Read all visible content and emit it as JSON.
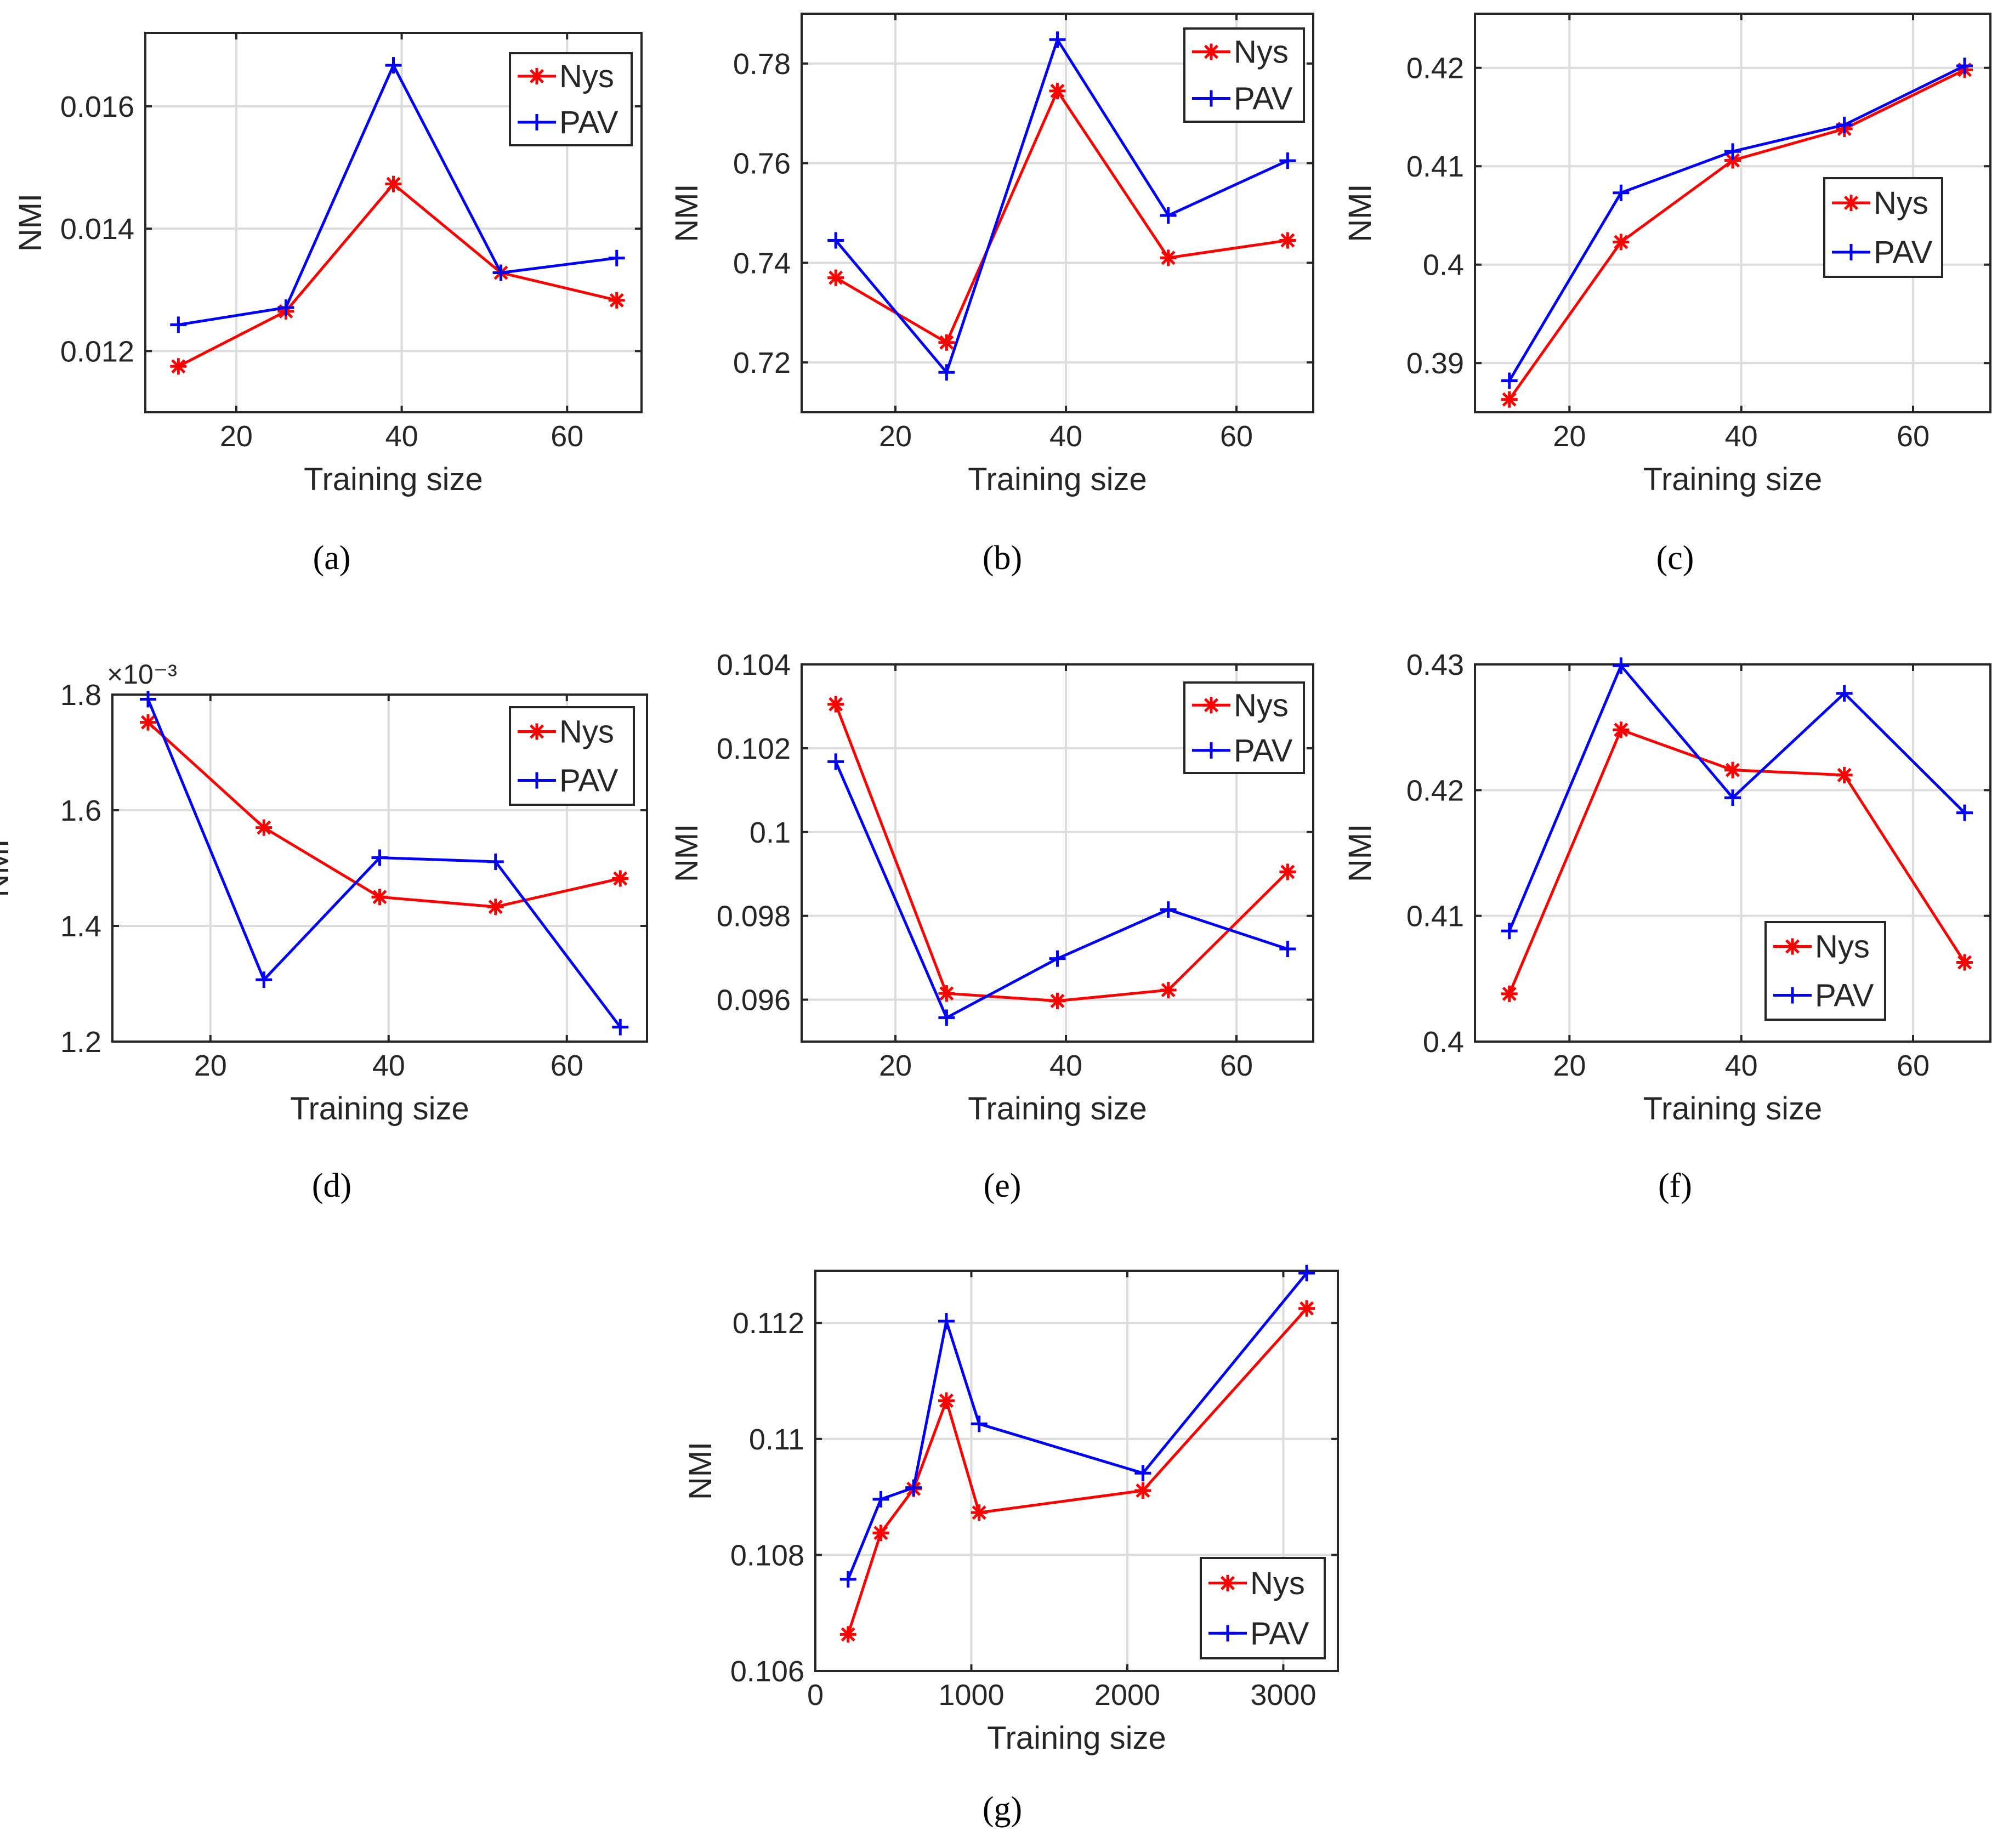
{
  "figure": {
    "series_styles": {
      "Nys": {
        "color": "#ff0000",
        "marker": "asterisk"
      },
      "PAV": {
        "color": "#0000ff",
        "marker": "plus"
      }
    },
    "grid_color": "#dcdcdc",
    "axis_color": "#262626"
  },
  "chart_data": [
    {
      "id": "a",
      "caption": "(a)",
      "type": "line",
      "xlabel": "Training size",
      "ylabel": "NMI",
      "xlim": [
        9,
        69
      ],
      "ylim": [
        0.011,
        0.0172
      ],
      "xticks": [
        20,
        40,
        60
      ],
      "xtick_labels": [
        "20",
        "40",
        "60"
      ],
      "yticks": [
        0.012,
        0.014,
        0.016
      ],
      "ytick_labels": [
        "0.012",
        "0.014",
        "0.016"
      ],
      "exponent_label": "",
      "legend_position": "top-right",
      "series": [
        {
          "name": "Nys",
          "x": [
            13,
            26,
            39,
            52,
            66
          ],
          "y": [
            0.01175,
            0.01265,
            0.01473,
            0.01328,
            0.01283
          ]
        },
        {
          "name": "PAV",
          "x": [
            13,
            26,
            39,
            52,
            66
          ],
          "y": [
            0.01243,
            0.01271,
            0.01667,
            0.01328,
            0.01352
          ]
        }
      ]
    },
    {
      "id": "b",
      "caption": "(b)",
      "type": "line",
      "xlabel": "Training size",
      "ylabel": "NMI",
      "xlim": [
        9,
        69
      ],
      "ylim": [
        0.71,
        0.79
      ],
      "xticks": [
        20,
        40,
        60
      ],
      "xtick_labels": [
        "20",
        "40",
        "60"
      ],
      "yticks": [
        0.72,
        0.74,
        0.76,
        0.78
      ],
      "ytick_labels": [
        "0.72",
        "0.74",
        "0.76",
        "0.78"
      ],
      "exponent_label": "",
      "legend_position": "top-right",
      "series": [
        {
          "name": "Nys",
          "x": [
            13,
            26,
            39,
            52,
            66
          ],
          "y": [
            0.737,
            0.724,
            0.7745,
            0.741,
            0.7445
          ]
        },
        {
          "name": "PAV",
          "x": [
            13,
            26,
            39,
            52,
            66
          ],
          "y": [
            0.7445,
            0.718,
            0.7848,
            0.7495,
            0.7605
          ]
        }
      ]
    },
    {
      "id": "c",
      "caption": "(c)",
      "type": "line",
      "xlabel": "Training size",
      "ylabel": "NMI",
      "xlim": [
        9,
        69
      ],
      "ylim": [
        0.385,
        0.4255
      ],
      "xticks": [
        20,
        40,
        60
      ],
      "xtick_labels": [
        "20",
        "40",
        "60"
      ],
      "yticks": [
        0.39,
        0.4,
        0.41,
        0.42
      ],
      "ytick_labels": [
        "0.39",
        "0.4",
        "0.41",
        "0.42"
      ],
      "exponent_label": "",
      "legend_position": "middle-right",
      "series": [
        {
          "name": "Nys",
          "x": [
            13,
            26,
            39,
            52,
            66
          ],
          "y": [
            0.3863,
            0.4023,
            0.4106,
            0.4138,
            0.4198
          ]
        },
        {
          "name": "PAV",
          "x": [
            13,
            26,
            39,
            52,
            66
          ],
          "y": [
            0.3882,
            0.4073,
            0.4115,
            0.4142,
            0.4202
          ]
        }
      ]
    },
    {
      "id": "d",
      "caption": "(d)",
      "type": "line",
      "xlabel": "Training size",
      "ylabel": "NMI",
      "xlim": [
        9,
        69
      ],
      "ylim": [
        1.2,
        1.8
      ],
      "xticks": [
        20,
        40,
        60
      ],
      "xtick_labels": [
        "20",
        "40",
        "60"
      ],
      "yticks": [
        1.2,
        1.4,
        1.6,
        1.8
      ],
      "ytick_labels": [
        "1.2",
        "1.4",
        "1.6",
        "1.8"
      ],
      "exponent_label": "×10⁻³",
      "legend_position": "top-right",
      "series": [
        {
          "name": "Nys",
          "x": [
            13,
            26,
            39,
            52,
            66
          ],
          "y": [
            1.752,
            1.57,
            1.45,
            1.433,
            1.482
          ]
        },
        {
          "name": "PAV",
          "x": [
            13,
            26,
            39,
            52,
            66
          ],
          "y": [
            1.792,
            1.307,
            1.518,
            1.511,
            1.225
          ]
        }
      ]
    },
    {
      "id": "e",
      "caption": "(e)",
      "type": "line",
      "xlabel": "Training size",
      "ylabel": "NMI",
      "xlim": [
        9,
        69
      ],
      "ylim": [
        0.095,
        0.104
      ],
      "xticks": [
        20,
        40,
        60
      ],
      "xtick_labels": [
        "20",
        "40",
        "60"
      ],
      "yticks": [
        0.096,
        0.098,
        0.1,
        0.102,
        0.104
      ],
      "ytick_labels": [
        "0.096",
        "0.098",
        "0.1",
        "0.102",
        "0.104"
      ],
      "exponent_label": "",
      "legend_position": "top-right",
      "series": [
        {
          "name": "Nys",
          "x": [
            13,
            26,
            39,
            52,
            66
          ],
          "y": [
            0.10305,
            0.09615,
            0.09597,
            0.09623,
            0.09905
          ]
        },
        {
          "name": "PAV",
          "x": [
            13,
            26,
            39,
            52,
            66
          ],
          "y": [
            0.10168,
            0.09557,
            0.09698,
            0.09815,
            0.09721
          ]
        }
      ]
    },
    {
      "id": "f",
      "caption": "(f)",
      "type": "line",
      "xlabel": "Training size",
      "ylabel": "NMI",
      "xlim": [
        9,
        69
      ],
      "ylim": [
        0.4,
        0.43
      ],
      "xticks": [
        20,
        40,
        60
      ],
      "xtick_labels": [
        "20",
        "40",
        "60"
      ],
      "yticks": [
        0.4,
        0.41,
        0.42,
        0.43
      ],
      "ytick_labels": [
        "0.4",
        "0.41",
        "0.42",
        "0.43"
      ],
      "exponent_label": "",
      "legend_position": "bottom-right",
      "series": [
        {
          "name": "Nys",
          "x": [
            13,
            26,
            39,
            52,
            66
          ],
          "y": [
            0.4038,
            0.4248,
            0.4216,
            0.4212,
            0.4063
          ]
        },
        {
          "name": "PAV",
          "x": [
            13,
            26,
            39,
            52,
            66
          ],
          "y": [
            0.4088,
            0.4299,
            0.4194,
            0.4277,
            0.4182
          ]
        }
      ]
    },
    {
      "id": "g",
      "caption": "(g)",
      "type": "line",
      "xlabel": "Training size",
      "ylabel": "NMI",
      "xlim": [
        0,
        3350
      ],
      "ylim": [
        0.106,
        0.1129
      ],
      "xticks": [
        0,
        1000,
        2000,
        3000
      ],
      "xtick_labels": [
        "0",
        "1000",
        "2000",
        "3000"
      ],
      "yticks": [
        0.106,
        0.108,
        0.11,
        0.112
      ],
      "ytick_labels": [
        "0.106",
        "0.108",
        "0.11",
        "0.112"
      ],
      "exponent_label": "",
      "legend_position": "bottom-right",
      "series": [
        {
          "name": "Nys",
          "x": [
            210,
            420,
            630,
            840,
            1050,
            2100,
            3150
          ],
          "y": [
            0.10663,
            0.10838,
            0.10914,
            0.11066,
            0.10873,
            0.10911,
            0.11225
          ]
        },
        {
          "name": "PAV",
          "x": [
            210,
            420,
            630,
            840,
            1050,
            2100,
            3150
          ],
          "y": [
            0.10758,
            0.10896,
            0.10916,
            0.11203,
            0.11026,
            0.10941,
            0.11286
          ]
        }
      ]
    }
  ]
}
